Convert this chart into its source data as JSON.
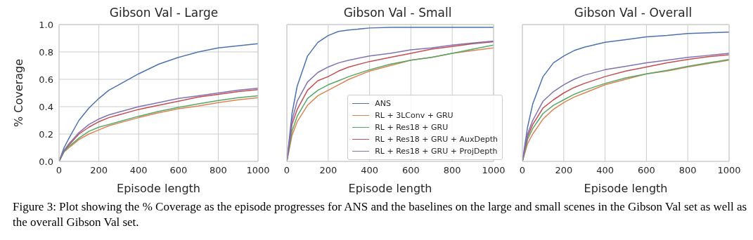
{
  "chart_data": [
    {
      "type": "line",
      "title": "Gibson Val - Large",
      "xlabel": "Episode length",
      "ylabel": "% Coverage",
      "x": [
        0,
        25,
        50,
        100,
        150,
        200,
        250,
        300,
        400,
        500,
        600,
        700,
        800,
        900,
        1000
      ],
      "xlim": [
        0,
        1000
      ],
      "xticks": [
        0,
        200,
        400,
        600,
        800,
        1000
      ],
      "ylim": [
        0,
        1
      ],
      "yticks": [
        {
          "value": 0,
          "label": "0.0"
        },
        0.2,
        0.4,
        0.6,
        0.8,
        {
          "value": 1,
          "label": "1.0"
        }
      ],
      "grid": true,
      "legend": false,
      "annotations": [
        "Figure 3: Plot showing the % Coverage as the episode progresses for ANS and the baselines on the large and small scenes in the Gibson Val set as well as the overall Gibson Val set."
      ],
      "series": [
        {
          "color": "#4c72b0",
          "values": [
            0,
            0.1,
            0.17,
            0.3,
            0.39,
            0.46,
            0.52,
            0.56,
            0.64,
            0.71,
            0.76,
            0.8,
            0.83,
            0.845,
            0.86
          ]
        },
        {
          "color": "#dd8452",
          "values": [
            0,
            0.07,
            0.1,
            0.16,
            0.2,
            0.23,
            0.26,
            0.28,
            0.32,
            0.355,
            0.385,
            0.405,
            0.43,
            0.45,
            0.465
          ]
        },
        {
          "color": "#55a868",
          "values": [
            0,
            0.07,
            0.11,
            0.17,
            0.22,
            0.25,
            0.27,
            0.29,
            0.33,
            0.365,
            0.395,
            0.42,
            0.445,
            0.465,
            0.48
          ]
        },
        {
          "color": "#c44e52",
          "values": [
            0,
            0.08,
            0.12,
            0.2,
            0.25,
            0.29,
            0.32,
            0.34,
            0.38,
            0.41,
            0.44,
            0.47,
            0.49,
            0.51,
            0.525
          ]
        },
        {
          "color": "#8172b3",
          "values": [
            0,
            0.08,
            0.13,
            0.21,
            0.27,
            0.31,
            0.34,
            0.36,
            0.4,
            0.43,
            0.46,
            0.48,
            0.5,
            0.52,
            0.535
          ]
        }
      ]
    },
    {
      "type": "line",
      "title": "Gibson Val - Small",
      "xlabel": "Episode length",
      "x": [
        0,
        25,
        50,
        100,
        150,
        200,
        250,
        300,
        400,
        500,
        600,
        700,
        800,
        900,
        1000
      ],
      "xlim": [
        0,
        1000
      ],
      "xticks": [
        0,
        200,
        400,
        600,
        800,
        1000
      ],
      "ylim": [
        0,
        1
      ],
      "yticks": [
        0,
        0.2,
        0.4,
        0.6,
        0.8,
        1
      ],
      "tick_labels": "x",
      "grid": true,
      "legend": "bottom right",
      "series": [
        {
          "name": "ANS",
          "color": "#4c72b0",
          "values": [
            0,
            0.35,
            0.55,
            0.77,
            0.87,
            0.92,
            0.95,
            0.96,
            0.975,
            0.98,
            0.98,
            0.98,
            0.98,
            0.98,
            0.98
          ]
        },
        {
          "name": "RL + 3LConv + GRU",
          "color": "#dd8452",
          "values": [
            0,
            0.19,
            0.29,
            0.41,
            0.48,
            0.52,
            0.56,
            0.6,
            0.66,
            0.7,
            0.74,
            0.76,
            0.79,
            0.81,
            0.83
          ]
        },
        {
          "name": "RL + Res18 + GRU",
          "color": "#55a868",
          "values": [
            0,
            0.22,
            0.33,
            0.46,
            0.52,
            0.56,
            0.59,
            0.62,
            0.67,
            0.71,
            0.74,
            0.76,
            0.79,
            0.82,
            0.85
          ]
        },
        {
          "name": "RL + Res18 + GRU + AuxDepth",
          "color": "#c44e52",
          "values": [
            0,
            0.27,
            0.38,
            0.52,
            0.59,
            0.62,
            0.66,
            0.69,
            0.73,
            0.76,
            0.79,
            0.82,
            0.84,
            0.86,
            0.875
          ]
        },
        {
          "name": "RL + Res18 + GRU + ProjDepth",
          "color": "#8172b3",
          "values": [
            0,
            0.3,
            0.44,
            0.58,
            0.65,
            0.69,
            0.72,
            0.74,
            0.77,
            0.79,
            0.815,
            0.83,
            0.85,
            0.865,
            0.88
          ]
        }
      ]
    },
    {
      "type": "line",
      "title": "Gibson Val - Overall",
      "xlabel": "Episode length",
      "x": [
        0,
        25,
        50,
        100,
        150,
        200,
        250,
        300,
        400,
        500,
        600,
        700,
        800,
        900,
        1000
      ],
      "xlim": [
        0,
        1000
      ],
      "xticks": [
        0,
        200,
        400,
        600,
        800,
        1000
      ],
      "ylim": [
        0,
        1
      ],
      "yticks": [
        0,
        0.2,
        0.4,
        0.6,
        0.8,
        1
      ],
      "tick_labels": "x",
      "grid": true,
      "legend": false,
      "series": [
        {
          "color": "#4c72b0",
          "values": [
            0,
            0.25,
            0.42,
            0.62,
            0.72,
            0.77,
            0.81,
            0.835,
            0.87,
            0.89,
            0.91,
            0.92,
            0.935,
            0.94,
            0.945
          ]
        },
        {
          "color": "#dd8452",
          "values": [
            0,
            0.13,
            0.2,
            0.31,
            0.38,
            0.43,
            0.47,
            0.5,
            0.56,
            0.6,
            0.64,
            0.66,
            0.69,
            0.715,
            0.74
          ]
        },
        {
          "color": "#55a868",
          "values": [
            0,
            0.16,
            0.24,
            0.35,
            0.41,
            0.45,
            0.49,
            0.52,
            0.57,
            0.61,
            0.64,
            0.665,
            0.695,
            0.72,
            0.745
          ]
        },
        {
          "color": "#c44e52",
          "values": [
            0,
            0.18,
            0.27,
            0.39,
            0.45,
            0.5,
            0.54,
            0.57,
            0.62,
            0.66,
            0.69,
            0.72,
            0.745,
            0.765,
            0.78
          ]
        },
        {
          "color": "#8172b3",
          "values": [
            0,
            0.2,
            0.3,
            0.44,
            0.51,
            0.56,
            0.6,
            0.63,
            0.67,
            0.695,
            0.72,
            0.74,
            0.76,
            0.775,
            0.79
          ]
        }
      ]
    }
  ]
}
